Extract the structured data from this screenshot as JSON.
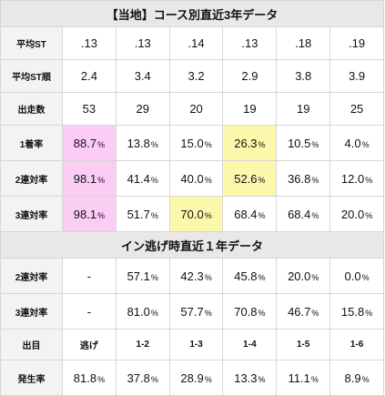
{
  "section1": {
    "title": "【当地】コース別直近3年データ",
    "rows": [
      {
        "label": "平均ST",
        "values": [
          ".13",
          ".13",
          ".14",
          ".13",
          ".18",
          ".19"
        ]
      },
      {
        "label": "平均ST順",
        "values": [
          "2.4",
          "3.4",
          "3.2",
          "2.9",
          "3.8",
          "3.9"
        ]
      },
      {
        "label": "出走数",
        "values": [
          "53",
          "29",
          "20",
          "19",
          "19",
          "25"
        ]
      },
      {
        "label": "1着率",
        "values": [
          "88.7",
          "13.8",
          "15.0",
          "26.3",
          "10.5",
          "4.0"
        ]
      },
      {
        "label": "2連対率",
        "values": [
          "98.1",
          "41.4",
          "40.0",
          "52.6",
          "36.8",
          "12.0"
        ]
      },
      {
        "label": "3連対率",
        "values": [
          "98.1",
          "51.7",
          "70.0",
          "68.4",
          "68.4",
          "20.0"
        ]
      }
    ]
  },
  "section2": {
    "title": "イン逃げ時直近１年データ",
    "rows": [
      {
        "label": "2連対率",
        "values": [
          "-",
          "57.1",
          "42.3",
          "45.8",
          "20.0",
          "0.0"
        ]
      },
      {
        "label": "3連対率",
        "values": [
          "-",
          "81.0",
          "57.7",
          "70.8",
          "46.7",
          "15.8"
        ]
      },
      {
        "label": "出目",
        "values": [
          "逃げ",
          "1-2",
          "1-3",
          "1-4",
          "1-5",
          "1-6"
        ]
      },
      {
        "label": "発生率",
        "values": [
          "81.8",
          "37.8",
          "28.9",
          "13.3",
          "11.1",
          "8.9"
        ]
      }
    ]
  },
  "percent_sign": "%",
  "colors": {
    "pink": "#fbcdf4",
    "yellow": "#fbf8ab",
    "header": "#e8e8e8"
  }
}
